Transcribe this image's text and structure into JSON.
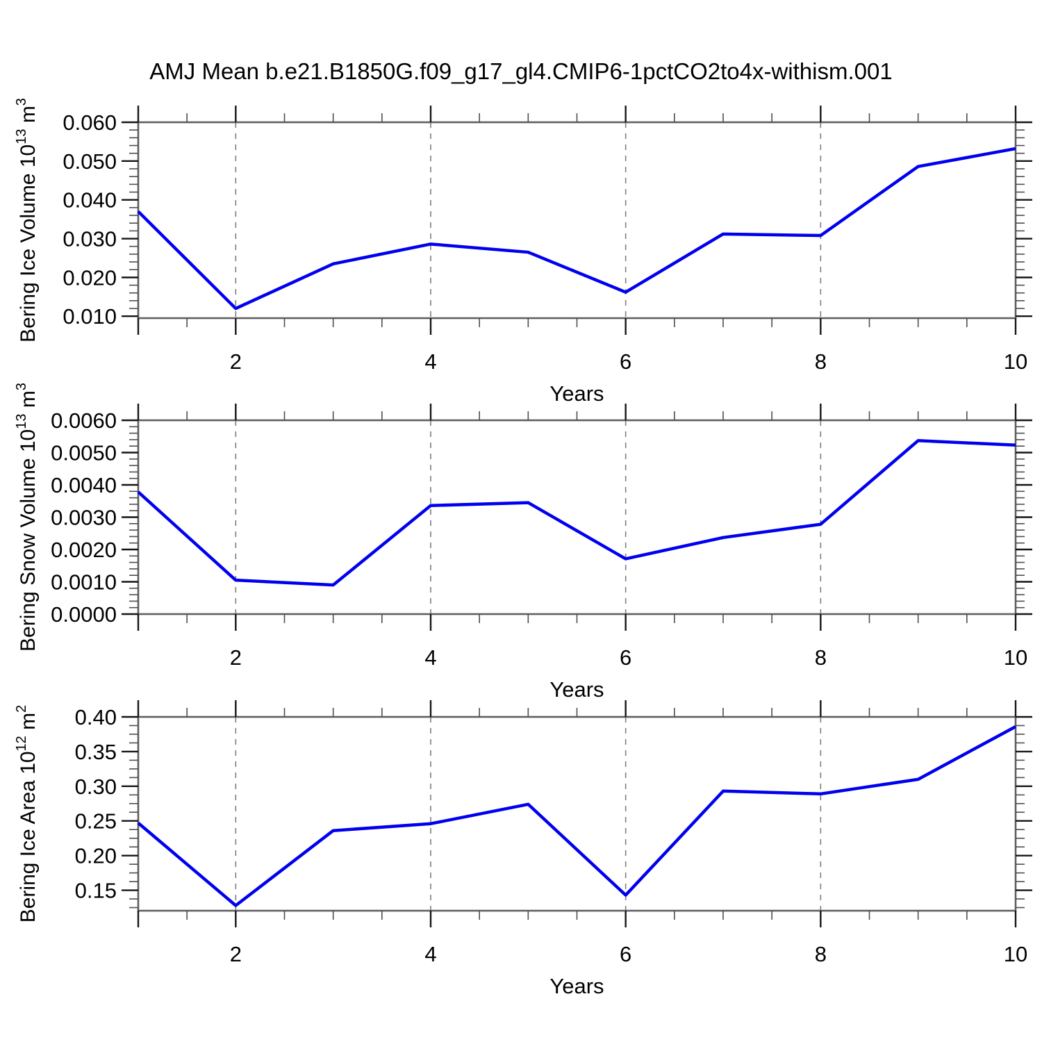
{
  "title": "AMJ Mean b.e21.B1850G.f09_g17_gl4.CMIP6-1pctCO2to4x-withism.001",
  "colors": {
    "line": "#0000ee",
    "frame": "#5f5f5f",
    "major_tick": "#151515",
    "minor_tick": "#4d4d4d",
    "gridline": "#7d7d7d",
    "text": "#000000",
    "background": "#ffffff"
  },
  "chart_data": [
    {
      "type": "line",
      "id": "bering-ice-volume",
      "ylabel_text": "Bering Ice Volume 10^13 m^3",
      "ylabel_parts": [
        {
          "t": "Bering Ice Volume 10",
          "sup": false
        },
        {
          "t": "13",
          "sup": true
        },
        {
          "t": " m",
          "sup": false
        },
        {
          "t": "3",
          "sup": true
        }
      ],
      "xlabel": "Years",
      "x": [
        1,
        2,
        3,
        4,
        5,
        6,
        7,
        8,
        9,
        10
      ],
      "values": [
        0.037,
        0.012,
        0.0235,
        0.0286,
        0.0265,
        0.0162,
        0.0312,
        0.0308,
        0.0486,
        0.0532
      ],
      "xlim": [
        1,
        10
      ],
      "ylim": [
        0.0095,
        0.06
      ],
      "yticks": [
        {
          "v": 0.06,
          "label": "0.060"
        },
        {
          "v": 0.05,
          "label": "0.050"
        },
        {
          "v": 0.04,
          "label": "0.040"
        },
        {
          "v": 0.03,
          "label": "0.030"
        },
        {
          "v": 0.02,
          "label": "0.020"
        },
        {
          "v": 0.01,
          "label": "0.010"
        }
      ],
      "y_minor_step": 0.002,
      "x_major_ticks": [
        1,
        2,
        4,
        6,
        8,
        10
      ],
      "x_labeled_ticks": [
        {
          "v": 2,
          "label": "2"
        },
        {
          "v": 4,
          "label": "4"
        },
        {
          "v": 6,
          "label": "6"
        },
        {
          "v": 8,
          "label": "8"
        },
        {
          "v": 10,
          "label": "10"
        }
      ],
      "x_minor_step": 0.5,
      "x_gridlines": [
        2,
        4,
        6,
        8
      ],
      "grid_style": "vertical-dashed",
      "legend": "none"
    },
    {
      "type": "line",
      "id": "bering-snow-volume",
      "ylabel_text": "Bering Snow Volume 10^13 m^3",
      "ylabel_parts": [
        {
          "t": "Bering Snow Volume 10",
          "sup": false
        },
        {
          "t": "13",
          "sup": true
        },
        {
          "t": " m",
          "sup": false
        },
        {
          "t": "3",
          "sup": true
        }
      ],
      "xlabel": "Years",
      "x": [
        1,
        2,
        3,
        4,
        5,
        6,
        7,
        8,
        9,
        10
      ],
      "values": [
        0.00378,
        0.00105,
        0.0009,
        0.00336,
        0.00345,
        0.00171,
        0.00237,
        0.00278,
        0.00537,
        0.00523
      ],
      "xlim": [
        1,
        10
      ],
      "ylim": [
        0.0,
        0.006
      ],
      "yticks": [
        {
          "v": 0.006,
          "label": "0.0060"
        },
        {
          "v": 0.005,
          "label": "0.0050"
        },
        {
          "v": 0.004,
          "label": "0.0040"
        },
        {
          "v": 0.003,
          "label": "0.0030"
        },
        {
          "v": 0.002,
          "label": "0.0020"
        },
        {
          "v": 0.001,
          "label": "0.0010"
        },
        {
          "v": 0.0,
          "label": "0.0000"
        }
      ],
      "y_minor_step": 0.0002,
      "x_major_ticks": [
        1,
        2,
        4,
        6,
        8,
        10
      ],
      "x_labeled_ticks": [
        {
          "v": 2,
          "label": "2"
        },
        {
          "v": 4,
          "label": "4"
        },
        {
          "v": 6,
          "label": "6"
        },
        {
          "v": 8,
          "label": "8"
        },
        {
          "v": 10,
          "label": "10"
        }
      ],
      "x_minor_step": 0.5,
      "x_gridlines": [
        2,
        4,
        6,
        8
      ],
      "grid_style": "vertical-dashed",
      "legend": "none"
    },
    {
      "type": "line",
      "id": "bering-ice-area",
      "ylabel_text": "Bering Ice Area 10^12 m^2",
      "ylabel_parts": [
        {
          "t": "Bering Ice Area 10",
          "sup": false
        },
        {
          "t": "12",
          "sup": true
        },
        {
          "t": " m",
          "sup": false
        },
        {
          "t": "2",
          "sup": true
        }
      ],
      "xlabel": "Years",
      "x": [
        1,
        2,
        3,
        4,
        5,
        6,
        7,
        8,
        9,
        10
      ],
      "values": [
        0.247,
        0.128,
        0.236,
        0.246,
        0.274,
        0.143,
        0.293,
        0.289,
        0.31,
        0.386
      ],
      "xlim": [
        1,
        10
      ],
      "ylim": [
        0.1205,
        0.4
      ],
      "yticks": [
        {
          "v": 0.4,
          "label": "0.40"
        },
        {
          "v": 0.35,
          "label": "0.35"
        },
        {
          "v": 0.3,
          "label": "0.30"
        },
        {
          "v": 0.25,
          "label": "0.25"
        },
        {
          "v": 0.2,
          "label": "0.20"
        },
        {
          "v": 0.15,
          "label": "0.15"
        }
      ],
      "y_minor_step": 0.0125,
      "x_major_ticks": [
        1,
        2,
        4,
        6,
        8,
        10
      ],
      "x_labeled_ticks": [
        {
          "v": 2,
          "label": "2"
        },
        {
          "v": 4,
          "label": "4"
        },
        {
          "v": 6,
          "label": "6"
        },
        {
          "v": 8,
          "label": "8"
        },
        {
          "v": 10,
          "label": "10"
        }
      ],
      "x_minor_step": 0.5,
      "x_gridlines": [
        2,
        4,
        6,
        8
      ],
      "grid_style": "vertical-dashed",
      "legend": "none"
    }
  ]
}
